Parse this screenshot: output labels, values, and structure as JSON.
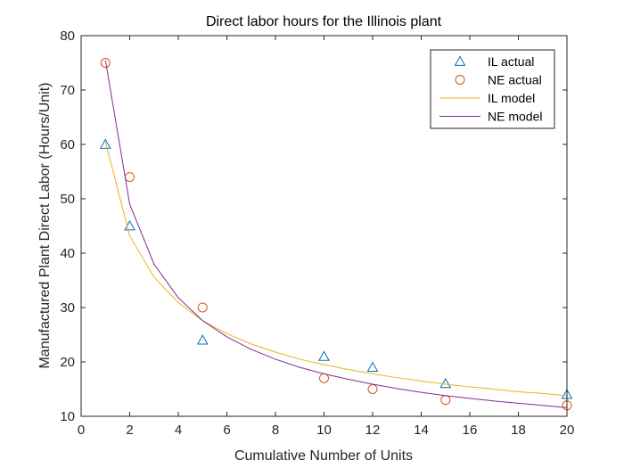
{
  "chart_data": {
    "type": "line",
    "title": "Direct labor hours for the Illinois plant",
    "xlabel": "Cumulative Number of Units",
    "ylabel": "Manufactured Plant Direct Labor (Hours/Unit)",
    "xlim": [
      0,
      20
    ],
    "ylim": [
      10,
      80
    ],
    "xticks": [
      0,
      2,
      4,
      6,
      8,
      10,
      12,
      14,
      16,
      18,
      20
    ],
    "yticks": [
      10,
      20,
      30,
      40,
      50,
      60,
      70,
      80
    ],
    "grid": false,
    "legend_position": "top-right",
    "series": [
      {
        "name": "IL actual",
        "kind": "scatter",
        "marker": "triangle",
        "color": "#0072BD",
        "x": [
          1,
          2,
          5,
          10,
          12,
          15,
          20
        ],
        "y": [
          60,
          45,
          24,
          21,
          19,
          16,
          14
        ]
      },
      {
        "name": "NE actual",
        "kind": "scatter",
        "marker": "circle",
        "color": "#D95319",
        "x": [
          1,
          2,
          5,
          10,
          12,
          15,
          20
        ],
        "y": [
          75,
          54,
          30,
          17,
          15,
          13,
          12
        ]
      },
      {
        "name": "IL model",
        "kind": "line",
        "color": "#EDB120",
        "x": [
          1,
          2,
          3,
          4,
          5,
          6,
          7,
          8,
          9,
          10,
          11,
          12,
          13,
          14,
          15,
          16,
          17,
          18,
          19,
          20
        ],
        "y": [
          60.5,
          43.2,
          35.6,
          30.9,
          27.6,
          25.2,
          23.3,
          21.8,
          20.5,
          19.5,
          18.6,
          17.8,
          17.1,
          16.5,
          15.9,
          15.4,
          15.0,
          14.5,
          14.2,
          13.8
        ]
      },
      {
        "name": "NE model",
        "kind": "line",
        "color": "#7E2F8E",
        "x": [
          1,
          2,
          3,
          4,
          5,
          6,
          7,
          8,
          9,
          10,
          11,
          12,
          13,
          14,
          15,
          16,
          17,
          18,
          19,
          20
        ],
        "y": [
          75.5,
          49.0,
          38.0,
          31.8,
          27.6,
          24.6,
          22.3,
          20.5,
          19.0,
          17.8,
          16.8,
          15.9,
          15.1,
          14.4,
          13.8,
          13.3,
          12.8,
          12.4,
          12.0,
          11.6
        ]
      }
    ]
  }
}
